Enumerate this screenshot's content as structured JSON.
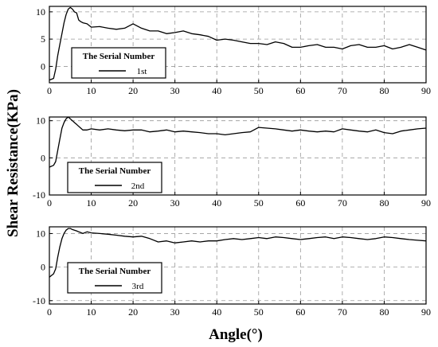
{
  "figure": {
    "ylabel": "Shear Resistance(KPa)",
    "xlabel": "Angle(°)"
  },
  "chart_data": [
    {
      "type": "line",
      "xlim": [
        0,
        90
      ],
      "ylim": [
        -3,
        11
      ],
      "x_ticks": [
        "0",
        "10",
        "20",
        "30",
        "40",
        "50",
        "60",
        "70",
        "80",
        "90"
      ],
      "y_ticks": [
        {
          "value": 0,
          "label": "0"
        },
        {
          "value": 5,
          "label": "5"
        },
        {
          "value": 10,
          "label": "10"
        }
      ],
      "grid": true,
      "legend": {
        "placement": "left",
        "title": "The Serial Number",
        "entry": "1st"
      },
      "series": [
        {
          "name": "1st",
          "x": [
            0,
            1,
            1.5,
            2,
            2.5,
            3,
            3.5,
            4,
            4.5,
            5,
            5.5,
            6,
            6.5,
            7,
            7.5,
            8,
            9,
            10,
            12,
            14,
            16,
            18,
            20,
            22,
            24,
            26,
            28,
            30,
            32,
            34,
            36,
            38,
            40,
            42,
            44,
            46,
            48,
            50,
            52,
            54,
            56,
            58,
            60,
            62,
            64,
            66,
            68,
            70,
            72,
            74,
            76,
            78,
            80,
            82,
            84,
            86,
            88,
            90
          ],
          "y": [
            -2.5,
            -2.2,
            -0.5,
            2,
            4,
            6,
            8,
            9.5,
            10.5,
            10.8,
            10.5,
            10,
            9.8,
            8.5,
            8.2,
            8,
            7.8,
            7.2,
            7.3,
            7,
            6.8,
            7,
            7.8,
            7,
            6.5,
            6.5,
            6,
            6.2,
            6.5,
            6,
            5.8,
            5.5,
            4.8,
            5,
            4.8,
            4.5,
            4.2,
            4.2,
            4,
            4.5,
            4.2,
            3.5,
            3.5,
            3.8,
            4,
            3.5,
            3.5,
            3.2,
            3.8,
            4,
            3.5,
            3.5,
            3.8,
            3.2,
            3.5,
            4,
            3.5,
            3
          ]
        }
      ]
    },
    {
      "type": "line",
      "xlim": [
        0,
        90
      ],
      "ylim": [
        -10,
        11
      ],
      "x_ticks": [
        "0",
        "10",
        "20",
        "30",
        "40",
        "50",
        "60",
        "70",
        "80",
        "90"
      ],
      "y_ticks": [
        {
          "value": -10,
          "label": "-10"
        },
        {
          "value": 0,
          "label": "0"
        },
        {
          "value": 10,
          "label": "10"
        }
      ],
      "grid": true,
      "legend": {
        "placement": "left",
        "title": "The Serial Number",
        "entry": "2nd"
      },
      "series": [
        {
          "name": "2nd",
          "x": [
            0,
            1,
            1.5,
            2,
            2.5,
            3,
            3.5,
            4,
            4.5,
            5,
            5.5,
            6,
            6.5,
            7,
            7.5,
            8,
            9,
            10,
            12,
            14,
            16,
            18,
            20,
            22,
            24,
            26,
            28,
            30,
            32,
            34,
            36,
            38,
            40,
            42,
            44,
            46,
            48,
            50,
            52,
            54,
            56,
            58,
            60,
            62,
            64,
            66,
            68,
            70,
            72,
            74,
            76,
            78,
            80,
            82,
            84,
            86,
            88,
            90
          ],
          "y": [
            -2.5,
            -2,
            -1,
            2,
            5,
            8,
            9.5,
            10.5,
            11,
            10.5,
            10,
            9.5,
            9,
            8.5,
            8,
            7.5,
            7.5,
            7.8,
            7.5,
            7.8,
            7.5,
            7.3,
            7.5,
            7.5,
            7,
            7.2,
            7.5,
            7,
            7.2,
            7,
            6.8,
            6.5,
            6.5,
            6.2,
            6.5,
            6.8,
            7,
            8.2,
            8,
            7.8,
            7.5,
            7.2,
            7.5,
            7.2,
            7,
            7.2,
            7,
            7.8,
            7.5,
            7.2,
            7,
            7.5,
            6.8,
            6.5,
            7.2,
            7.5,
            7.8,
            8
          ]
        }
      ]
    },
    {
      "type": "line",
      "xlim": [
        0,
        90
      ],
      "ylim": [
        -11,
        12
      ],
      "x_ticks": [
        "0",
        "10",
        "20",
        "30",
        "40",
        "50",
        "60",
        "70",
        "80",
        "90"
      ],
      "y_ticks": [
        {
          "value": -10,
          "label": "-10"
        },
        {
          "value": 0,
          "label": "0"
        },
        {
          "value": 10,
          "label": "10"
        }
      ],
      "grid": true,
      "legend": {
        "placement": "left",
        "title": "The Serial Number",
        "entry": "3rd"
      },
      "series": [
        {
          "name": "3rd",
          "x": [
            0,
            1,
            1.5,
            2,
            2.5,
            3,
            3.5,
            4,
            4.5,
            5,
            5.5,
            6,
            6.5,
            7,
            7.5,
            8,
            9,
            10,
            12,
            14,
            16,
            18,
            20,
            22,
            24,
            26,
            28,
            30,
            32,
            34,
            36,
            38,
            40,
            42,
            44,
            46,
            48,
            50,
            52,
            54,
            56,
            58,
            60,
            62,
            64,
            66,
            68,
            70,
            72,
            74,
            76,
            78,
            80,
            82,
            84,
            86,
            88,
            90
          ],
          "y": [
            -3,
            -2,
            -0.5,
            3,
            6,
            8.5,
            10,
            11,
            11.5,
            11.5,
            11.2,
            11,
            10.8,
            10.5,
            10.3,
            10,
            10.5,
            10.2,
            10,
            9.8,
            9.5,
            9.2,
            9,
            9.2,
            8.5,
            7.5,
            7.8,
            7.2,
            7.5,
            7.8,
            7.5,
            7.8,
            7.8,
            8.2,
            8.5,
            8.2,
            8.5,
            8.8,
            8.5,
            9,
            8.8,
            8.5,
            8.2,
            8.5,
            8.8,
            9,
            8.5,
            9,
            8.8,
            8.5,
            8.2,
            8.5,
            9,
            8.8,
            8.5,
            8.2,
            8,
            7.8
          ]
        }
      ]
    }
  ]
}
